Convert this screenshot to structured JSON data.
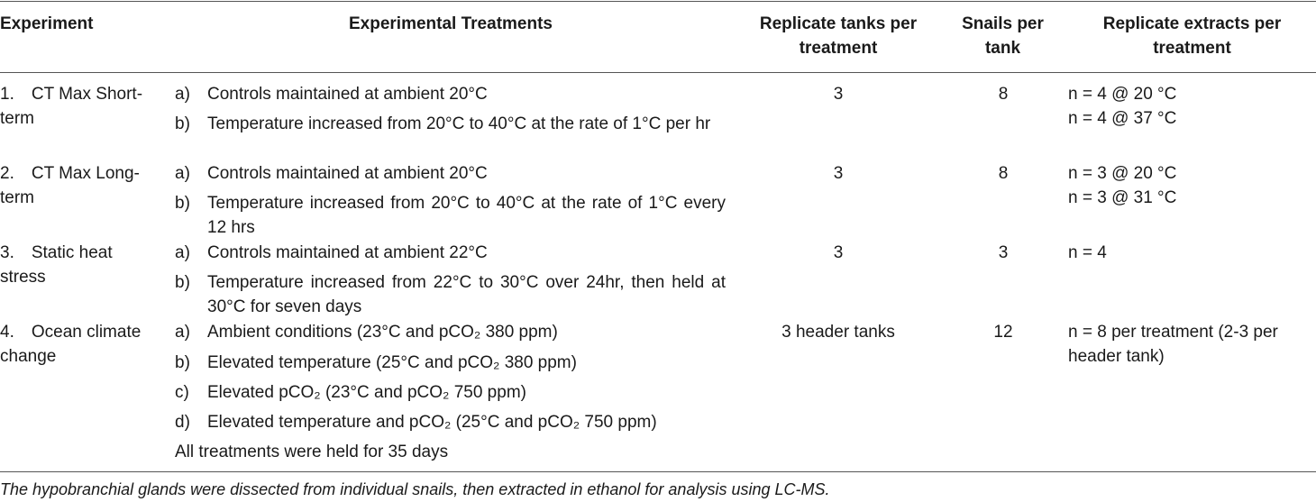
{
  "table": {
    "headers": {
      "experiment": "Experiment",
      "treatments": "Experimental Treatments",
      "tanks": "Replicate tanks per treatment",
      "snails": "Snails per tank",
      "extracts": "Replicate extracts per treatment"
    },
    "rows": [
      {
        "experiment": "1. CT Max Short-term",
        "treatments": [
          {
            "label": "a)",
            "text": "Controls maintained at ambient 20°C"
          },
          {
            "label": "b)",
            "text": "Temperature increased from 20°C to 40°C at the rate of 1°C per hr"
          }
        ],
        "tanks": "3",
        "snails": "8",
        "extracts": [
          "n = 4 @ 20 °C",
          "n = 4 @ 37 °C"
        ]
      },
      {
        "experiment": "2. CT Max Long-term",
        "treatments": [
          {
            "label": "a)",
            "text": "Controls maintained at ambient 20°C"
          },
          {
            "label": "b)",
            "text": "Temperature increased from 20°C to 40°C at the rate of 1°C every 12 hrs"
          }
        ],
        "tanks": "3",
        "snails": "8",
        "extracts": [
          "n = 3 @ 20 °C",
          "n = 3 @ 31 °C"
        ]
      },
      {
        "experiment": "3. Static heat stress",
        "treatments": [
          {
            "label": "a)",
            "text": "Controls maintained at ambient 22°C"
          },
          {
            "label": "b)",
            "text": "Temperature increased from 22°C to 30°C over 24hr, then held at 30°C for seven days"
          }
        ],
        "tanks": "3",
        "snails": "3",
        "extracts": [
          "n = 4"
        ]
      },
      {
        "experiment": "4. Ocean climate change",
        "treatments": [
          {
            "label": "a)",
            "text": "Ambient conditions (23°C and pCO₂ 380 ppm)"
          },
          {
            "label": "b)",
            "text": "Elevated temperature (25°C and pCO₂ 380 ppm)"
          },
          {
            "label": "c)",
            "text": "Elevated pCO₂ (23°C and pCO₂ 750 ppm)"
          },
          {
            "label": "d)",
            "text": "Elevated temperature and pCO₂ (25°C and pCO₂ 750 ppm)"
          }
        ],
        "treatments_note": "All treatments were held for 35 days",
        "tanks": "3 header tanks",
        "snails": "12",
        "extracts": [
          "n = 8 per treatment (2-3 per header tank)"
        ]
      }
    ],
    "footnote": "The hypobranchial glands were dissected from individual snails, then extracted in ethanol for analysis using LC-MS."
  }
}
